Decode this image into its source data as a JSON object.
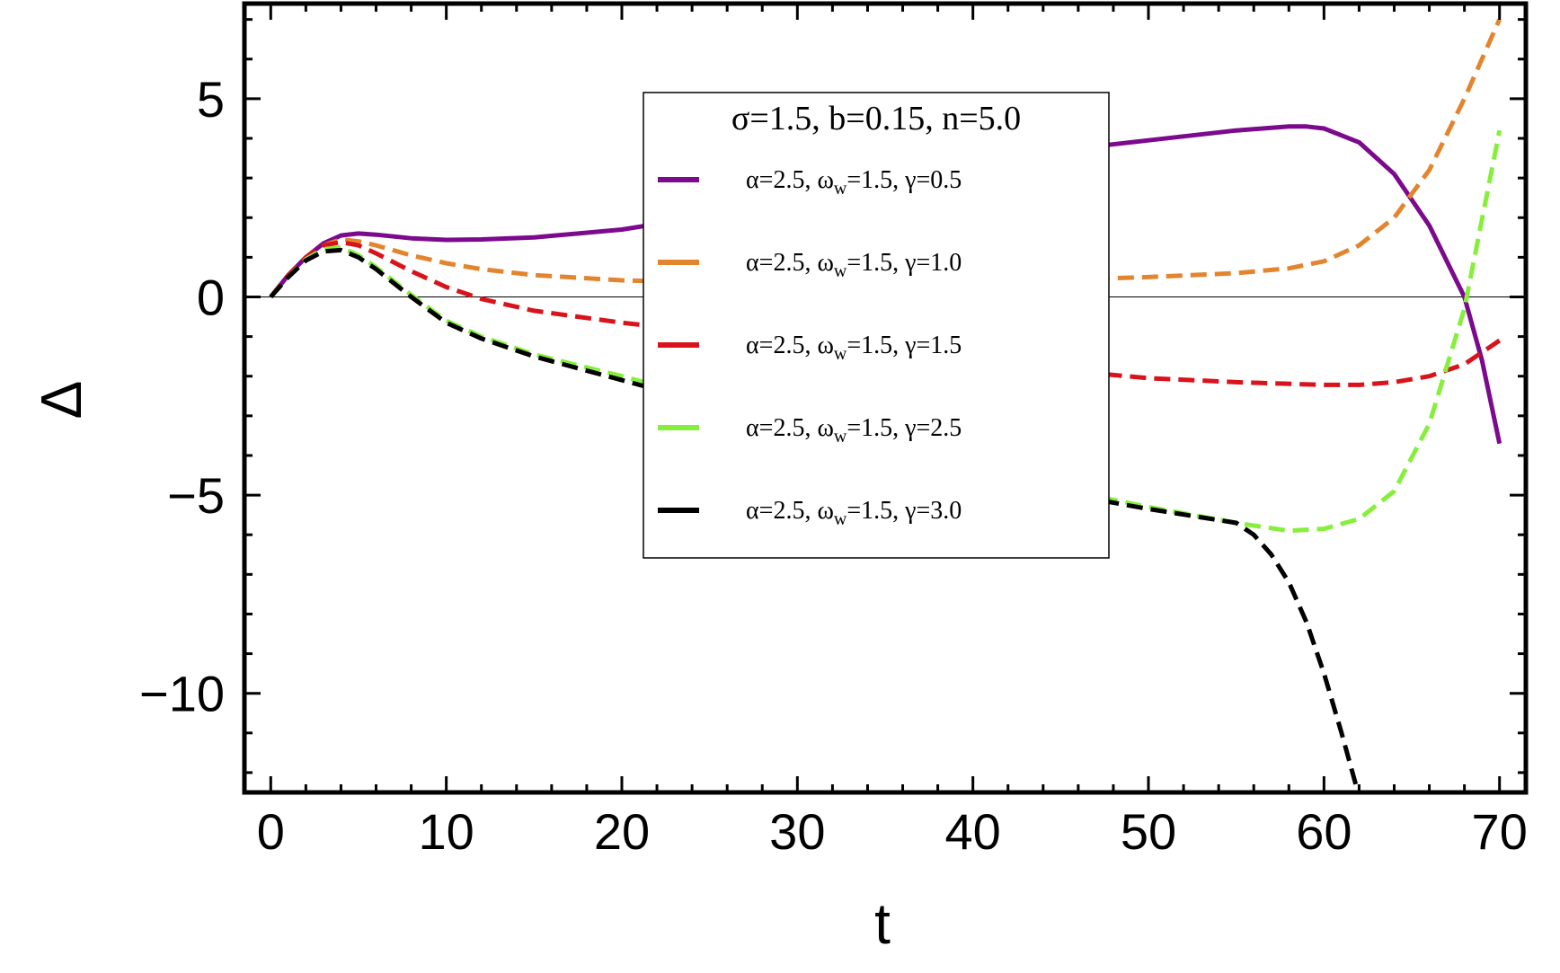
{
  "chart_data": {
    "type": "line",
    "xlabel": "t",
    "ylabel": "Δ",
    "xlim": [
      -1.5,
      71.5
    ],
    "ylim": [
      -12.5,
      7.4
    ],
    "xticks": [
      0,
      10,
      20,
      30,
      40,
      50,
      60,
      70
    ],
    "xtick_labels": [
      "0",
      "10",
      "20",
      "30",
      "40",
      "50",
      "60",
      "70"
    ],
    "yticks": [
      5,
      0,
      -5,
      -10
    ],
    "ytick_labels": [
      "5",
      "0",
      "−5",
      "−10"
    ],
    "grid": false,
    "zero_line": true,
    "legend": {
      "title": "σ=1.5, b=0.15, n=5.0",
      "position": "top-center"
    },
    "series": [
      {
        "name": "α=2.5, ω_w=1.5, γ=0.5",
        "label_parts": [
          "α=2.5, ω",
          "w",
          "=1.5, γ=0.5"
        ],
        "color": "#7b0a8c",
        "dash": "solid",
        "x": [
          0,
          1,
          2,
          3,
          4,
          5,
          6,
          8,
          10,
          12,
          15,
          20,
          25,
          30,
          35,
          40,
          45,
          50,
          55,
          58,
          59,
          60,
          62,
          64,
          66,
          68,
          69,
          70
        ],
        "y": [
          0,
          0.55,
          1.0,
          1.35,
          1.55,
          1.6,
          1.57,
          1.48,
          1.44,
          1.45,
          1.5,
          1.7,
          2.05,
          2.5,
          2.95,
          3.35,
          3.7,
          3.95,
          4.2,
          4.3,
          4.3,
          4.25,
          3.9,
          3.1,
          1.8,
          0.0,
          -1.6,
          -3.7
        ]
      },
      {
        "name": "α=2.5, ω_w=1.5, γ=1.0",
        "label_parts": [
          "α=2.5, ω",
          "w",
          "=1.5, γ=1.0"
        ],
        "color": "#e2852e",
        "dash": "dashed",
        "x": [
          0,
          1,
          2,
          3,
          4,
          5,
          6,
          8,
          10,
          12,
          15,
          20,
          25,
          30,
          35,
          40,
          45,
          50,
          55,
          58,
          60,
          62,
          64,
          66,
          68,
          70
        ],
        "y": [
          0,
          0.55,
          1.0,
          1.3,
          1.45,
          1.4,
          1.3,
          1.05,
          0.85,
          0.7,
          0.55,
          0.42,
          0.36,
          0.34,
          0.35,
          0.38,
          0.43,
          0.5,
          0.6,
          0.72,
          0.9,
          1.3,
          2.0,
          3.2,
          5.0,
          7.0
        ]
      },
      {
        "name": "α=2.5, ω_w=1.5, γ=1.5",
        "label_parts": [
          "α=2.5, ω",
          "w",
          "=1.5, γ=1.5"
        ],
        "color": "#d8131b",
        "dash": "dashed",
        "x": [
          0,
          1,
          2,
          3,
          4,
          5,
          6,
          8,
          10,
          12,
          15,
          20,
          25,
          30,
          35,
          40,
          45,
          50,
          55,
          60,
          62,
          64,
          66,
          68,
          70
        ],
        "y": [
          0,
          0.55,
          1.0,
          1.3,
          1.38,
          1.3,
          1.1,
          0.65,
          0.25,
          -0.05,
          -0.35,
          -0.65,
          -0.9,
          -1.15,
          -1.4,
          -1.65,
          -1.85,
          -2.05,
          -2.15,
          -2.22,
          -2.22,
          -2.15,
          -2.0,
          -1.7,
          -1.1
        ]
      },
      {
        "name": "α=2.5, ω_w=1.5, γ=2.5",
        "label_parts": [
          "α=2.5, ω",
          "w",
          "=1.5, γ=2.5"
        ],
        "color": "#86ef3c",
        "dash": "dashed",
        "x": [
          0,
          1,
          2,
          3,
          4,
          5,
          6,
          8,
          10,
          12,
          15,
          20,
          25,
          30,
          35,
          40,
          45,
          50,
          55,
          58,
          60,
          62,
          64,
          66,
          68,
          70
        ],
        "y": [
          0,
          0.5,
          0.95,
          1.2,
          1.25,
          1.05,
          0.75,
          0.05,
          -0.6,
          -1.0,
          -1.45,
          -2.0,
          -2.6,
          -3.2,
          -3.8,
          -4.35,
          -4.85,
          -5.3,
          -5.7,
          -5.9,
          -5.85,
          -5.6,
          -4.9,
          -3.2,
          -0.3,
          4.2
        ]
      },
      {
        "name": "α=2.5, ω_w=1.5, γ=3.0",
        "label_parts": [
          "α=2.5, ω",
          "w",
          "=1.5, γ=3.0"
        ],
        "color": "#000000",
        "dash": "dashed",
        "x": [
          0,
          1,
          2,
          3,
          4,
          5,
          6,
          8,
          10,
          12,
          15,
          20,
          25,
          30,
          35,
          40,
          45,
          50,
          55,
          56,
          57,
          58,
          59,
          60,
          61,
          62
        ],
        "y": [
          0,
          0.5,
          0.92,
          1.15,
          1.18,
          1.0,
          0.7,
          0.0,
          -0.65,
          -1.05,
          -1.5,
          -2.1,
          -2.7,
          -3.3,
          -3.9,
          -4.45,
          -4.95,
          -5.35,
          -5.7,
          -6.0,
          -6.5,
          -7.2,
          -8.2,
          -9.5,
          -11.0,
          -12.6
        ]
      }
    ]
  }
}
